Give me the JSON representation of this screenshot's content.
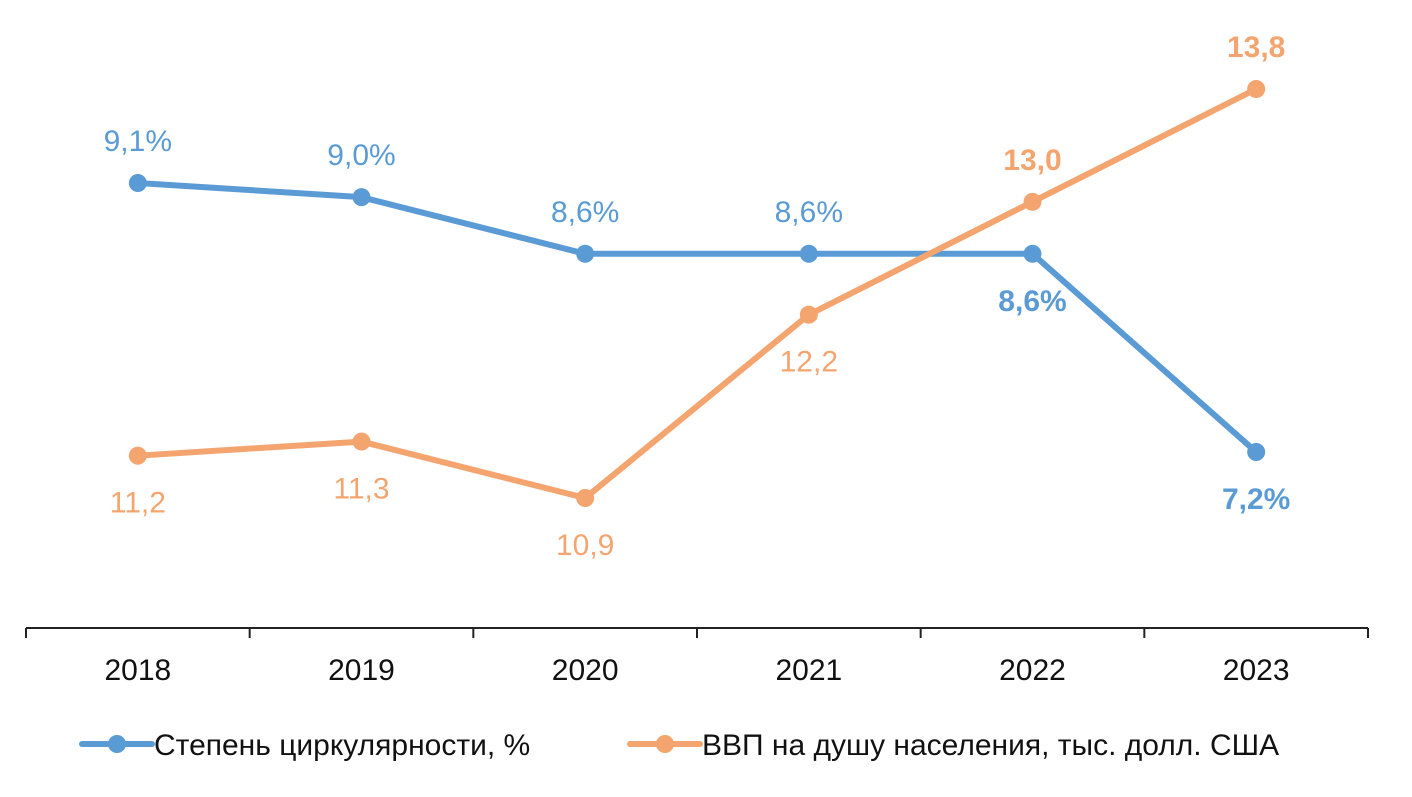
{
  "chart_data": {
    "type": "line",
    "title": "",
    "xlabel": "",
    "ylabel": "",
    "categories": [
      "2018",
      "2019",
      "2020",
      "2021",
      "2022",
      "2023"
    ],
    "grid": false,
    "legend_position": "bottom",
    "series": [
      {
        "name": "Степень циркулярности, %",
        "color": "#5b9bd5",
        "values": [
          9.1,
          9.0,
          8.6,
          8.6,
          8.6,
          7.2
        ],
        "labels": [
          "9,1%",
          "9,0%",
          "8,6%",
          "8,6%",
          "8,6%",
          "7,2%"
        ],
        "bold_labels": [
          false,
          false,
          false,
          false,
          true,
          true
        ],
        "label_positions": [
          "above",
          "above",
          "above",
          "above",
          "below",
          "below"
        ]
      },
      {
        "name": "ВВП на душу населения, тыс. долл. США",
        "color": "#f4a46e",
        "values": [
          11.2,
          11.3,
          10.9,
          12.2,
          13.0,
          13.8
        ],
        "labels": [
          "11,2",
          "11,3",
          "10,9",
          "12,2",
          "13,0",
          "13,8"
        ],
        "bold_labels": [
          false,
          false,
          false,
          false,
          true,
          true
        ],
        "label_positions": [
          "below",
          "below",
          "below",
          "below",
          "above",
          "above"
        ]
      }
    ]
  }
}
